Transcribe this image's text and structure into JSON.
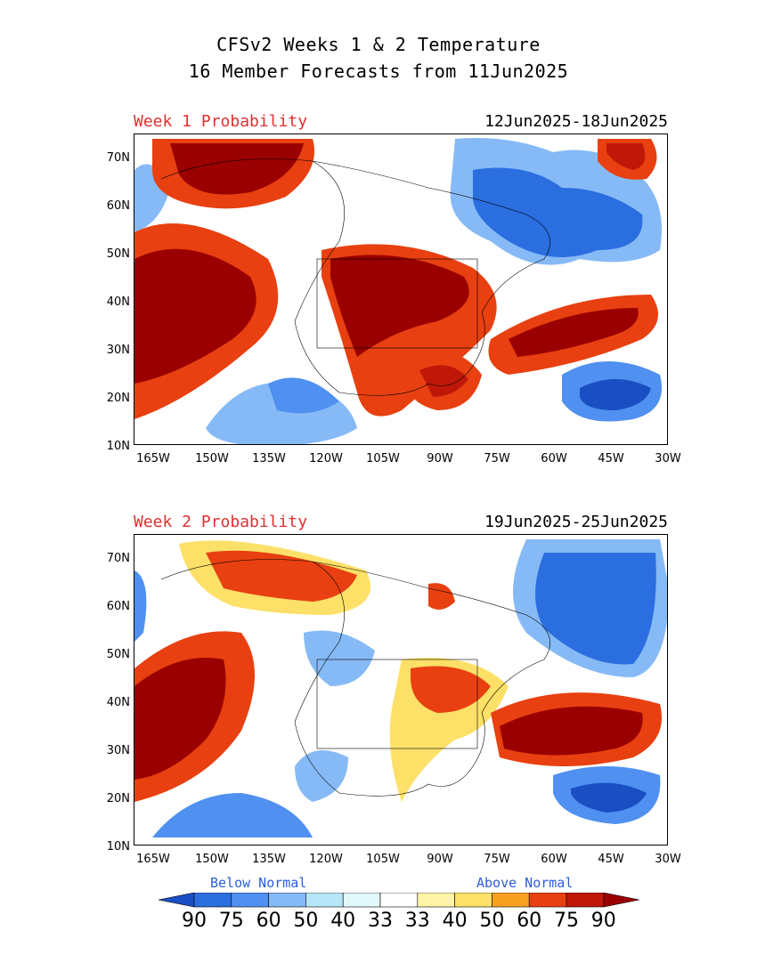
{
  "header": {
    "title_line1": "CFSv2 Weeks 1 & 2 Temperature",
    "title_line2": "16 Member Forecasts from 11Jun2025"
  },
  "panels": [
    {
      "label": "Week 1 Probability",
      "dates": "12Jun2025-18Jun2025"
    },
    {
      "label": "Week 2 Probability",
      "dates": "19Jun2025-25Jun2025"
    }
  ],
  "axes": {
    "lat_labels": [
      "70N",
      "60N",
      "50N",
      "40N",
      "30N",
      "20N",
      "10N"
    ],
    "lon_labels": [
      "165W",
      "150W",
      "135W",
      "120W",
      "105W",
      "90W",
      "75W",
      "60W",
      "45W",
      "30W"
    ]
  },
  "legend": {
    "below_label": "Below Normal",
    "above_label": "Above Normal",
    "values": [
      "90",
      "75",
      "60",
      "50",
      "40",
      "33",
      "33",
      "40",
      "50",
      "60",
      "75",
      "90"
    ],
    "colors": [
      "#1a4fc4",
      "#2a6ee0",
      "#4f90f0",
      "#86baf6",
      "#b6e6f8",
      "#e2f8fa",
      "#ffffff",
      "#fef4a8",
      "#fde068",
      "#f8a020",
      "#e84010",
      "#c01808",
      "#9a0000"
    ]
  }
}
